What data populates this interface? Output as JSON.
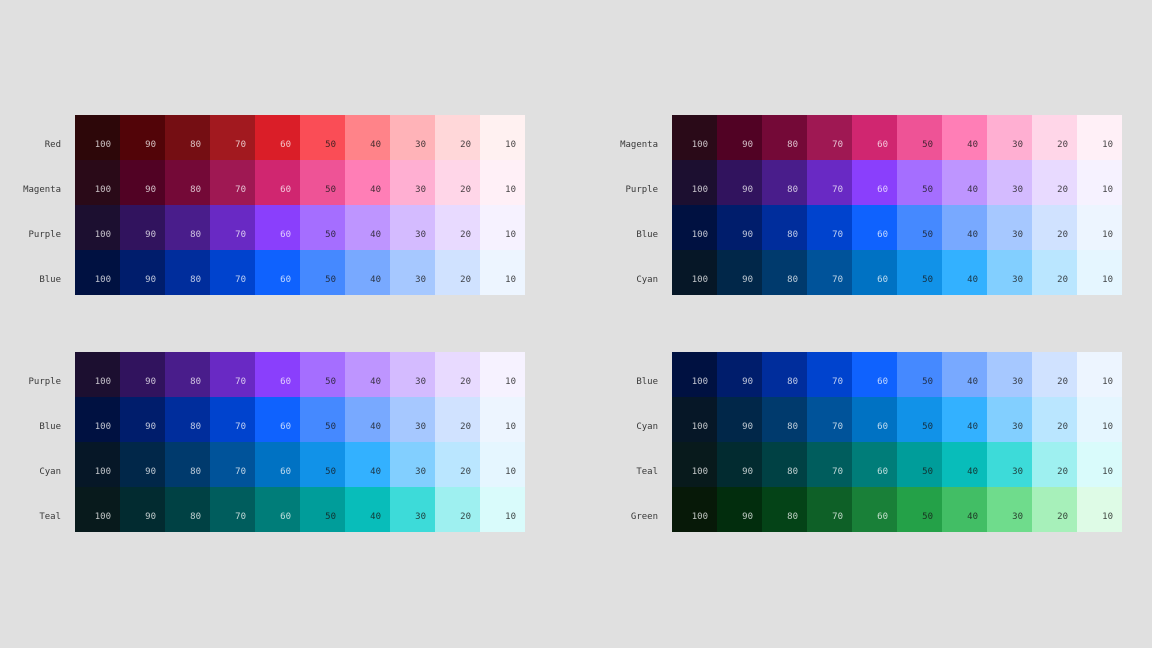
{
  "grades": [
    "100",
    "90",
    "80",
    "70",
    "60",
    "50",
    "40",
    "30",
    "20",
    "10"
  ],
  "palettes": {
    "Red": [
      "#2d0709",
      "#520408",
      "#750e13",
      "#a2191f",
      "#da1e28",
      "#fa4d56",
      "#ff8389",
      "#ffb3b8",
      "#ffd7d9",
      "#fff1f1"
    ],
    "Magenta": [
      "#2a0a18",
      "#510224",
      "#740937",
      "#9f1853",
      "#d02670",
      "#ee5396",
      "#ff7eb6",
      "#ffafd2",
      "#ffd6e8",
      "#fff0f7"
    ],
    "Purple": [
      "#1c0f30",
      "#31135e",
      "#491d8b",
      "#6929c4",
      "#8a3ffc",
      "#a56eff",
      "#be95ff",
      "#d4bbff",
      "#e8daff",
      "#f6f2ff"
    ],
    "Blue": [
      "#001141",
      "#001d6c",
      "#002d9c",
      "#0043ce",
      "#0f62fe",
      "#4589ff",
      "#78a9ff",
      "#a6c8ff",
      "#d0e2ff",
      "#edf5ff"
    ],
    "Cyan": [
      "#061727",
      "#012749",
      "#003a6d",
      "#00539a",
      "#0072c3",
      "#1192e8",
      "#33b1ff",
      "#82cfff",
      "#bae6ff",
      "#e5f6ff"
    ],
    "Teal": [
      "#081a1c",
      "#022b30",
      "#004144",
      "#005d5d",
      "#007d79",
      "#009d9a",
      "#08bdba",
      "#3ddbd9",
      "#9ef0f0",
      "#d9fbfb"
    ],
    "Green": [
      "#071908",
      "#022d0d",
      "#044317",
      "#0e6027",
      "#198038",
      "#24a148",
      "#42be65",
      "#6fdc8c",
      "#a7f0ba",
      "#defbe6"
    ]
  },
  "panels": [
    {
      "rows": [
        "Red",
        "Magenta",
        "Purple",
        "Blue"
      ]
    },
    {
      "rows": [
        "Magenta",
        "Purple",
        "Blue",
        "Cyan"
      ]
    },
    {
      "rows": [
        "Purple",
        "Blue",
        "Cyan",
        "Teal"
      ]
    },
    {
      "rows": [
        "Blue",
        "Cyan",
        "Teal",
        "Green"
      ]
    }
  ]
}
